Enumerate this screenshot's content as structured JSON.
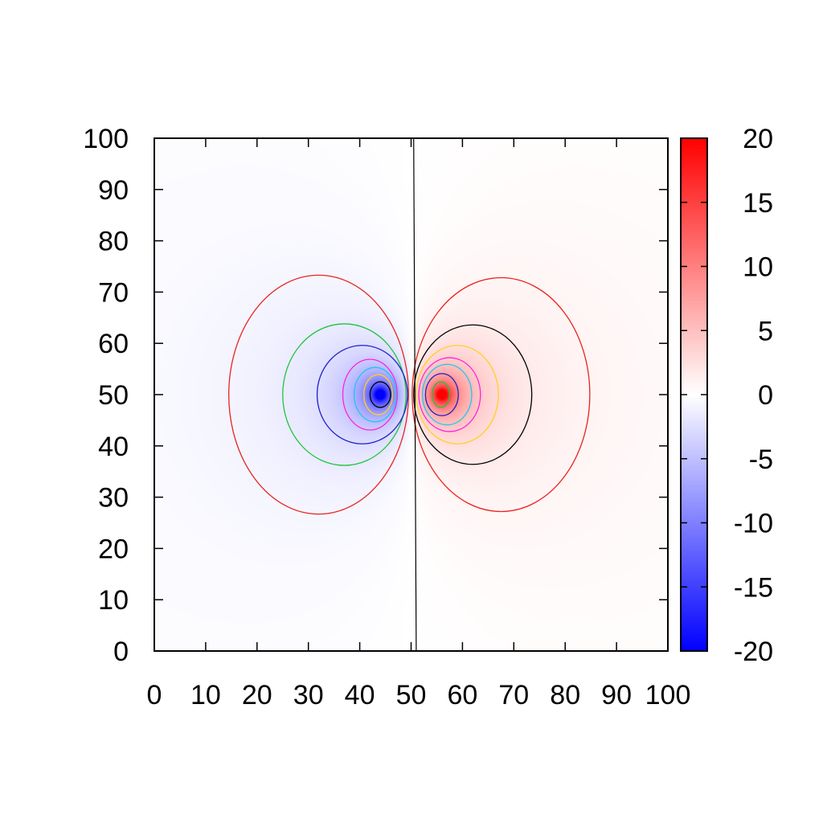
{
  "chart_data": {
    "type": "heatmap",
    "title": "",
    "xlabel": "",
    "ylabel": "",
    "xlim": [
      0,
      100
    ],
    "ylim": [
      0,
      100
    ],
    "xticks": [
      "0",
      "10",
      "20",
      "30",
      "40",
      "50",
      "60",
      "70",
      "80",
      "90",
      "100"
    ],
    "yticks": [
      "0",
      "10",
      "20",
      "30",
      "40",
      "50",
      "60",
      "70",
      "80",
      "90",
      "100"
    ],
    "grid": false,
    "colorbar": {
      "range": [
        -20,
        20
      ],
      "ticks": [
        "-20",
        "-15",
        "-10",
        "-5",
        "0",
        "5",
        "10",
        "15",
        "20"
      ],
      "min_color": "#0000ff",
      "mid_color": "#ffffff",
      "max_color": "#ff0000"
    },
    "field": {
      "description": "dipole: negative lobe left of x=50, positive lobe right of x=50",
      "negative_center": [
        44,
        50
      ],
      "positive_center": [
        56,
        50
      ],
      "zero_line_x": [
        50.5,
        51
      ]
    },
    "contours": [
      {
        "lobe": "negative",
        "center": [
          32,
          50
        ],
        "rx": 17.5,
        "ry": 23.3,
        "color": "#e8231e"
      },
      {
        "lobe": "negative",
        "center": [
          37,
          50
        ],
        "rx": 12,
        "ry": 13.8,
        "color": "#1ec43c"
      },
      {
        "lobe": "negative",
        "center": [
          40.5,
          50
        ],
        "rx": 8.8,
        "ry": 9.6,
        "color": "#1e1ecc"
      },
      {
        "lobe": "negative",
        "center": [
          42,
          50
        ],
        "rx": 5.3,
        "ry": 6.9,
        "color": "#ff22dd"
      },
      {
        "lobe": "negative",
        "center": [
          43,
          50
        ],
        "rx": 4.1,
        "ry": 5.3,
        "color": "#1ec8f0"
      },
      {
        "lobe": "negative",
        "center": [
          43.6,
          50
        ],
        "rx": 2.8,
        "ry": 3.9,
        "color": "#ffd11e"
      },
      {
        "lobe": "negative",
        "center": [
          44,
          50
        ],
        "rx": 2,
        "ry": 2.5,
        "color": "#000000"
      },
      {
        "lobe": "positive",
        "center": [
          67.5,
          50
        ],
        "rx": 17.3,
        "ry": 22.8,
        "color": "#e8231e"
      },
      {
        "lobe": "positive",
        "center": [
          62,
          50
        ],
        "rx": 11.5,
        "ry": 13.6,
        "color": "#000000"
      },
      {
        "lobe": "positive",
        "center": [
          59,
          50
        ],
        "rx": 8,
        "ry": 9.6,
        "color": "#ffd11e"
      },
      {
        "lobe": "positive",
        "center": [
          57.5,
          50
        ],
        "rx": 6,
        "ry": 7.2,
        "color": "#ff22dd"
      },
      {
        "lobe": "positive",
        "center": [
          57,
          50
        ],
        "rx": 4.8,
        "ry": 5.9,
        "color": "#1ec8f0"
      },
      {
        "lobe": "positive",
        "center": [
          56,
          50
        ],
        "rx": 3.2,
        "ry": 4.1,
        "color": "#1e1ecc"
      },
      {
        "lobe": "positive",
        "center": [
          55.8,
          50
        ],
        "rx": 1.7,
        "ry": 2.5,
        "color": "#1ec43c"
      }
    ]
  }
}
